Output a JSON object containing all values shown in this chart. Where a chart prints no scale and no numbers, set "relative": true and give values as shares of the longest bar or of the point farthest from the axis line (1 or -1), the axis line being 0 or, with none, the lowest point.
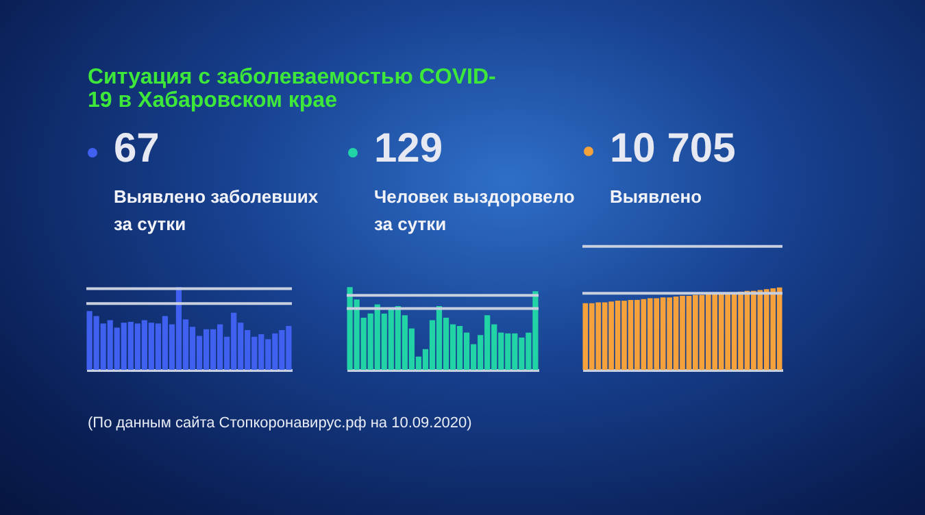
{
  "chart_data": [
    {
      "type": "other",
      "title": "Ситуация с заболеваемостью COVID-19 в Хабаровском крае",
      "annotations": [
        "(По данным сайта Стопкоронавирус.рф на 10.09.2020)"
      ]
    },
    {
      "type": "bar",
      "title": "67",
      "subtitle": "Выявлено заболевших за сутки",
      "relative": true,
      "color": "#4060f0",
      "categories": [
        null,
        null,
        null,
        null,
        null,
        null,
        null,
        null,
        null,
        null,
        null,
        null,
        null,
        null,
        null,
        null,
        null,
        null,
        null,
        null,
        null,
        null,
        null,
        null,
        null,
        null,
        null,
        null,
        null,
        null
      ],
      "values": [
        0.71,
        0.65,
        0.56,
        0.6,
        0.51,
        0.57,
        0.58,
        0.56,
        0.6,
        0.57,
        0.56,
        0.65,
        0.55,
        1.0,
        0.61,
        0.52,
        0.41,
        0.49,
        0.49,
        0.55,
        0.4,
        0.69,
        0.57,
        0.48,
        0.4,
        0.43,
        0.37,
        0.44,
        0.48,
        0.53
      ],
      "ref_lines": [
        {
          "axis": "y",
          "value": 0.98,
          "label": null
        },
        {
          "axis": "y",
          "value": 0.8,
          "label": null
        }
      ]
    },
    {
      "type": "bar",
      "title": "129",
      "subtitle": "Человек выздоровело за сутки",
      "relative": true,
      "color": "#22d3a6",
      "categories": [
        null,
        null,
        null,
        null,
        null,
        null,
        null,
        null,
        null,
        null,
        null,
        null,
        null,
        null,
        null,
        null,
        null,
        null,
        null,
        null,
        null,
        null,
        null,
        null,
        null,
        null,
        null,
        null
      ],
      "values": [
        1.0,
        0.85,
        0.63,
        0.68,
        0.79,
        0.68,
        0.74,
        0.77,
        0.66,
        0.5,
        0.16,
        0.25,
        0.6,
        0.77,
        0.63,
        0.55,
        0.53,
        0.45,
        0.31,
        0.42,
        0.66,
        0.55,
        0.45,
        0.44,
        0.44,
        0.39,
        0.45,
        0.95
      ],
      "ref_lines": [
        {
          "axis": "y",
          "value": 0.9,
          "label": null
        },
        {
          "axis": "y",
          "value": 0.74,
          "label": null
        }
      ]
    },
    {
      "type": "bar",
      "title": "10 705",
      "subtitle": "Выявлено",
      "relative": true,
      "color": "#f5a23c",
      "categories": [
        null,
        null,
        null,
        null,
        null,
        null,
        null,
        null,
        null,
        null,
        null,
        null,
        null,
        null,
        null,
        null,
        null,
        null,
        null,
        null,
        null,
        null,
        null,
        null,
        null,
        null,
        null,
        null,
        null,
        null,
        null
      ],
      "values": [
        0.81,
        0.81,
        0.82,
        0.82,
        0.83,
        0.84,
        0.84,
        0.85,
        0.85,
        0.86,
        0.87,
        0.87,
        0.88,
        0.88,
        0.89,
        0.9,
        0.9,
        0.91,
        0.91,
        0.92,
        0.93,
        0.93,
        0.94,
        0.94,
        0.95,
        0.96,
        0.96,
        0.97,
        0.98,
        0.99,
        1.0
      ],
      "ref_lines": [
        {
          "axis": "y",
          "value": 0.93,
          "label": null
        },
        {
          "axis": "y",
          "value": 1.5,
          "label": null
        }
      ]
    }
  ]
}
